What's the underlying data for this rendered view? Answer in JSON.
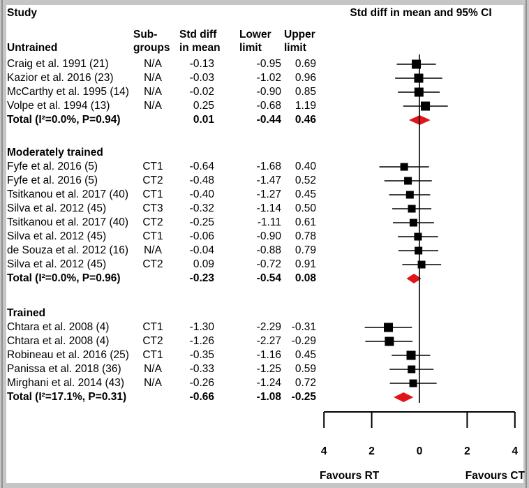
{
  "header": {
    "study_label": "Study",
    "plot_title": "Std diff in mean and 95% CI",
    "columns": [
      {
        "line1": "Sub-",
        "line2": "groups"
      },
      {
        "line1": "Std diff",
        "line2": "in mean"
      },
      {
        "line1": "Lower",
        "line2": "limit"
      },
      {
        "line1": "Upper",
        "line2": "limit"
      }
    ]
  },
  "footer": {
    "favours_left": "Favours RT",
    "favours_right": "Favours CT"
  },
  "colors": {
    "square": "#000000",
    "diamond": "#e01419",
    "line": "#000000"
  },
  "chart_data": {
    "type": "forest",
    "title": "Std diff in mean and 95% CI",
    "xlim": [
      -4,
      4
    ],
    "axis_ticks": [
      -4,
      -2,
      0,
      2,
      4
    ],
    "axis_tick_labels": [
      "4",
      "2",
      "0",
      "2",
      "4"
    ],
    "favours": {
      "left": "Favours RT",
      "right": "Favours CT"
    },
    "groups": [
      {
        "name": "Untrained",
        "studies": [
          {
            "label": "Craig et al. 1991 (21)",
            "subgroup": "N/A",
            "mean": "-0.13",
            "lower": "-0.95",
            "upper": "0.69",
            "marker_size": 13
          },
          {
            "label": "Kazior et al. 2016 (23)",
            "subgroup": "N/A",
            "mean": "-0.03",
            "lower": "-1.02",
            "upper": "0.96",
            "marker_size": 13
          },
          {
            "label": "McCarthy et al. 1995 (14)",
            "subgroup": "N/A",
            "mean": "-0.02",
            "lower": "-0.90",
            "upper": "0.85",
            "marker_size": 13
          },
          {
            "label": "Volpe et al. 1994 (13)",
            "subgroup": "N/A",
            "mean": "0.25",
            "lower": "-0.68",
            "upper": "1.19",
            "marker_size": 13
          }
        ],
        "total": {
          "label": "Total (I²=0.0%, P=0.94)",
          "mean": "0.01",
          "lower": "-0.44",
          "upper": "0.46"
        }
      },
      {
        "name": "Moderately trained",
        "studies": [
          {
            "label": "Fyfe et al. 2016 (5)",
            "subgroup": "CT1",
            "mean": "-0.64",
            "lower": "-1.68",
            "upper": "0.40",
            "marker_size": 11
          },
          {
            "label": "Fyfe et al. 2016 (5)",
            "subgroup": "CT2",
            "mean": "-0.48",
            "lower": "-1.47",
            "upper": "0.52",
            "marker_size": 11
          },
          {
            "label": "Tsitkanou et al. 2017 (40)",
            "subgroup": "CT1",
            "mean": "-0.40",
            "lower": "-1.27",
            "upper": "0.45",
            "marker_size": 11
          },
          {
            "label": "Silva et al. 2012 (45)",
            "subgroup": "CT3",
            "mean": "-0.32",
            "lower": "-1.14",
            "upper": "0.50",
            "marker_size": 11
          },
          {
            "label": "Tsitkanou et al. 2017 (40)",
            "subgroup": "CT2",
            "mean": "-0.25",
            "lower": "-1.11",
            "upper": "0.61",
            "marker_size": 11
          },
          {
            "label": "Silva et al. 2012 (45)",
            "subgroup": "CT1",
            "mean": "-0.06",
            "lower": "-0.90",
            "upper": "0.78",
            "marker_size": 11
          },
          {
            "label": "de Souza et al. 2012 (16)",
            "subgroup": "N/A",
            "mean": "-0.04",
            "lower": "-0.88",
            "upper": "0.79",
            "marker_size": 11
          },
          {
            "label": "Silva et al. 2012 (45)",
            "subgroup": "CT2",
            "mean": "0.09",
            "lower": "-0.72",
            "upper": "0.91",
            "marker_size": 11
          }
        ],
        "total": {
          "label": "Total (I²=0.0%, P=0.96)",
          "mean": "-0.23",
          "lower": "-0.54",
          "upper": "0.08"
        }
      },
      {
        "name": "Trained",
        "studies": [
          {
            "label": "Chtara et al. 2008 (4)",
            "subgroup": "CT1",
            "mean": "-1.30",
            "lower": "-2.29",
            "upper": "-0.31",
            "marker_size": 13
          },
          {
            "label": "Chtara et al. 2008 (4)",
            "subgroup": "CT2",
            "mean": "-1.26",
            "lower": "-2.27",
            "upper": "-0.29",
            "marker_size": 13
          },
          {
            "label": "Robineau et al. 2016 (25)",
            "subgroup": "CT1",
            "mean": "-0.35",
            "lower": "-1.16",
            "upper": "0.45",
            "marker_size": 13
          },
          {
            "label": "Panissa et al. 2018 (36)",
            "subgroup": "N/A",
            "mean": "-0.33",
            "lower": "-1.25",
            "upper": "0.59",
            "marker_size": 11
          },
          {
            "label": "Mirghani et al. 2014 (43)",
            "subgroup": "N/A",
            "mean": "-0.26",
            "lower": "-1.24",
            "upper": "0.72",
            "marker_size": 11
          }
        ],
        "total": {
          "label": "Total (I²=17.1%, P=0.31)",
          "mean": "-0.66",
          "lower": "-1.08",
          "upper": "-0.25"
        }
      }
    ]
  }
}
